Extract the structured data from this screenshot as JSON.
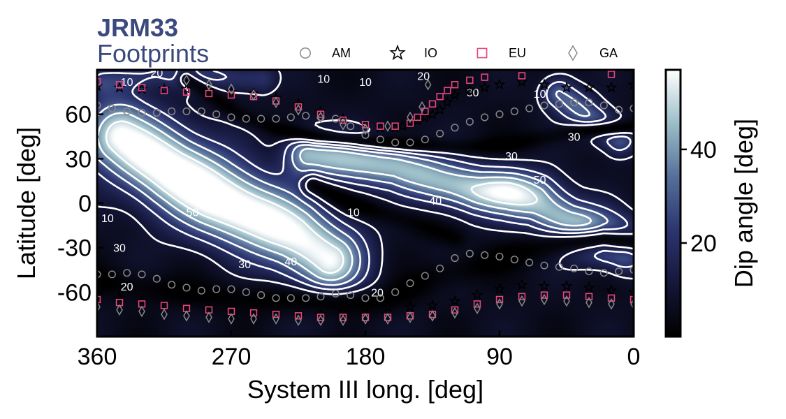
{
  "title": {
    "line1": "JRM33",
    "line2": "Footprints",
    "color": "#3b4a7c"
  },
  "chart_data": {
    "type": "heatmap",
    "xlabel": "System III long. [deg]",
    "ylabel": "Latitude [deg]",
    "xlim": [
      360,
      0
    ],
    "ylim": [
      -90,
      90
    ],
    "x_inverted": true,
    "x_ticks": [
      360,
      270,
      180,
      90,
      0
    ],
    "y_ticks": [
      60,
      30,
      0,
      -30,
      -60
    ],
    "y_tick_labels": [
      "60",
      "30",
      "0",
      "-30",
      "-60"
    ],
    "colorbar": {
      "label": "Dip angle [deg]",
      "range": [
        0,
        57
      ],
      "ticks": [
        20,
        40
      ],
      "colormap": [
        "#000000",
        "#15173a",
        "#2c3570",
        "#56709a",
        "#9cbec8",
        "#ffffff"
      ]
    },
    "contour_levels": [
      10,
      20,
      30,
      40,
      50
    ],
    "contour_color": "#ffffff",
    "contour_labels": [
      {
        "text": "20",
        "x": 320,
        "y": 88
      },
      {
        "text": "10",
        "x": 340,
        "y": 82
      },
      {
        "text": "10",
        "x": 180,
        "y": 82
      },
      {
        "text": "10",
        "x": 208,
        "y": 84
      },
      {
        "text": "20",
        "x": 141,
        "y": 86
      },
      {
        "text": "30",
        "x": 108,
        "y": 75
      },
      {
        "text": "10",
        "x": 63,
        "y": 74
      },
      {
        "text": "30",
        "x": 40,
        "y": 45
      },
      {
        "text": "30",
        "x": 82,
        "y": 32
      },
      {
        "text": "50",
        "x": 63,
        "y": 16
      },
      {
        "text": "40",
        "x": 133,
        "y": 2
      },
      {
        "text": "10",
        "x": 188,
        "y": -6
      },
      {
        "text": "50",
        "x": 296,
        "y": -6
      },
      {
        "text": "10",
        "x": 353,
        "y": -10
      },
      {
        "text": "30",
        "x": 345,
        "y": -30
      },
      {
        "text": "30",
        "x": 261,
        "y": -41
      },
      {
        "text": "40",
        "x": 230,
        "y": -39
      },
      {
        "text": "20",
        "x": 340,
        "y": -56
      },
      {
        "text": "20",
        "x": 172,
        "y": -60
      }
    ],
    "field": {
      "base": 6,
      "ridges": [
        {
          "lon": [
            345,
            310,
            280,
            250,
            228,
            205
          ],
          "lat": [
            45,
            22,
            5,
            -10,
            -22,
            -38
          ],
          "sigma": 17,
          "amp": 50
        },
        {
          "lon": [
            218,
            185,
            160,
            130,
            105,
            85,
            65,
            45,
            25,
            6
          ],
          "lat": [
            33,
            28,
            25,
            15,
            8,
            5,
            0,
            -12,
            -20,
            -28
          ],
          "sigma": 11,
          "amp": 40
        },
        {
          "lon": [
            50,
            30,
            10
          ],
          "lat": [
            74,
            58,
            44
          ],
          "sigma": 8,
          "amp": 26
        },
        {
          "lon": [
            355,
            320,
            285,
            250
          ],
          "lat": [
            82,
            88,
            86,
            84
          ],
          "sigma": 7,
          "amp": 15
        }
      ],
      "blobs": [
        {
          "lon": 305,
          "lat": 22,
          "sl": 28,
          "sa": 25,
          "amp": 10
        },
        {
          "lon": 265,
          "lat": -10,
          "sl": 30,
          "sa": 16,
          "amp": 8
        },
        {
          "lon": 80,
          "lat": 12,
          "sl": 20,
          "sa": 9,
          "amp": 14
        },
        {
          "lon": 32,
          "lat": -25,
          "sl": 14,
          "sa": 10,
          "amp": 16
        }
      ],
      "valleys": [
        {
          "lon": [
            360,
            320,
            290,
            260,
            230,
            200,
            165,
            135,
            110,
            80,
            50,
            20,
            0
          ],
          "lat": [
            -52,
            -58,
            -62,
            -64,
            -66,
            -68,
            -66,
            -50,
            -44,
            -34,
            -28,
            -24,
            -26
          ],
          "sigma": 7
        },
        {
          "lon": [
            300,
            265,
            240,
            210,
            180,
            150,
            110,
            85,
            60,
            40,
            20,
            0
          ],
          "lat": [
            84,
            60,
            50,
            45,
            42,
            40,
            38,
            40,
            44,
            48,
            50,
            52
          ],
          "sigma": 4
        },
        {
          "lon": [
            215,
            190,
            170,
            150,
            120
          ],
          "lat": [
            12,
            0,
            -6,
            -12,
            -24
          ],
          "sigma": 5
        }
      ]
    },
    "series": [
      {
        "name": "AM",
        "marker": "circle-open",
        "color": "#888888",
        "x": [
          360,
          350,
          340,
          330,
          320,
          310,
          300,
          290,
          280,
          270,
          260,
          250,
          240,
          230,
          220,
          210,
          200,
          190,
          180,
          170,
          160,
          150,
          140,
          130,
          120,
          110,
          100,
          90,
          80,
          70,
          60,
          50,
          40,
          30,
          20,
          10,
          0,
          360,
          350,
          340,
          330,
          320,
          310,
          300,
          290,
          280,
          270,
          260,
          250,
          240,
          230,
          220,
          210,
          200,
          190,
          180,
          170,
          160,
          150,
          140,
          130,
          120,
          110,
          100,
          90,
          80,
          70,
          60,
          50,
          40,
          30,
          20,
          10,
          0
        ],
        "y": [
          66,
          64,
          62,
          61,
          61,
          62,
          62,
          62,
          60,
          58,
          57,
          57,
          57,
          58,
          59,
          58,
          57,
          52,
          46,
          43,
          41,
          41,
          43,
          47,
          51,
          55,
          58,
          60,
          62,
          64,
          66,
          67,
          68,
          68,
          66,
          63,
          64,
          -48,
          -48,
          -47,
          -48,
          -51,
          -55,
          -57,
          -59,
          -58,
          -58,
          -60,
          -62,
          -64,
          -64,
          -64,
          -63,
          -61,
          -62,
          -64,
          -64,
          -60,
          -54,
          -49,
          -44,
          -37,
          -34,
          -35,
          -36,
          -38,
          -40,
          -42,
          -43,
          -44,
          -46,
          -47,
          -46,
          -45
        ]
      },
      {
        "name": "IO",
        "marker": "star-open",
        "color": "#000000",
        "x": [
          360,
          345,
          330,
          315,
          300,
          285,
          270,
          255,
          240,
          225,
          210,
          195,
          180,
          170,
          160,
          155,
          150,
          145,
          140,
          135,
          130,
          125,
          120,
          110,
          100,
          90,
          75,
          60,
          45,
          30,
          15,
          0,
          360,
          345,
          330,
          315,
          300,
          285,
          270,
          255,
          240,
          225,
          210,
          195,
          180,
          165,
          150,
          135,
          120,
          105,
          90,
          75,
          60,
          45,
          30,
          15,
          0
        ],
        "y": [
          79,
          78,
          77,
          77,
          77,
          76,
          75,
          74,
          71,
          67,
          62,
          57,
          53,
          51,
          51,
          52,
          54,
          56,
          58,
          60,
          63,
          68,
          73,
          76,
          78,
          80,
          82,
          80,
          78,
          78,
          78,
          80,
          -62,
          -64,
          -66,
          -68,
          -70,
          -72,
          -74,
          -75,
          -76,
          -76,
          -75,
          -73,
          -71,
          -70,
          -70,
          -69,
          -66,
          -62,
          -58,
          -55,
          -56,
          -56,
          -57,
          -59,
          -60
        ]
      },
      {
        "name": "EU",
        "marker": "square-open",
        "color": "#e8467c",
        "x": [
          360,
          345,
          330,
          315,
          300,
          285,
          270,
          255,
          240,
          225,
          210,
          195,
          180,
          170,
          160,
          150,
          145,
          140,
          135,
          130,
          125,
          120,
          110,
          100,
          75,
          15,
          360,
          345,
          330,
          315,
          300,
          285,
          270,
          255,
          240,
          225,
          210,
          195,
          180,
          165,
          150,
          135,
          120,
          105,
          90,
          75,
          60,
          45,
          30,
          15,
          0
        ],
        "y": [
          82,
          80,
          78,
          76,
          75,
          74,
          73,
          72,
          69,
          65,
          60,
          56,
          53,
          52,
          52,
          54,
          58,
          62,
          67,
          72,
          76,
          80,
          83,
          85,
          86,
          87,
          -65,
          -67,
          -68,
          -69,
          -71,
          -72,
          -73,
          -74,
          -75,
          -76,
          -77,
          -77,
          -77,
          -77,
          -76,
          -75,
          -72,
          -68,
          -65,
          -63,
          -62,
          -62,
          -63,
          -64,
          -65
        ]
      },
      {
        "name": "GA",
        "marker": "diamond-open",
        "color": "#888888",
        "x": [
          300,
          285,
          270,
          255,
          240,
          225,
          210,
          195,
          180,
          165,
          150,
          142,
          138,
          360,
          345,
          330,
          315,
          300,
          285,
          270,
          255,
          240,
          225,
          210,
          195,
          180,
          165,
          150,
          135,
          120,
          105,
          90,
          75,
          60,
          45,
          30,
          15,
          0
        ],
        "y": [
          83,
          80,
          77,
          73,
          68,
          63,
          58,
          53,
          50,
          52,
          58,
          65,
          80,
          -70,
          -72,
          -73,
          -75,
          -76,
          -77,
          -78,
          -78,
          -78,
          -79,
          -79,
          -79,
          -78,
          -78,
          -77,
          -76,
          -74,
          -71,
          -68,
          -66,
          -65,
          -66,
          -67,
          -68,
          -68
        ]
      }
    ],
    "legend": {
      "placement": "top",
      "entries": [
        "AM",
        "IO",
        "EU",
        "GA"
      ]
    }
  }
}
